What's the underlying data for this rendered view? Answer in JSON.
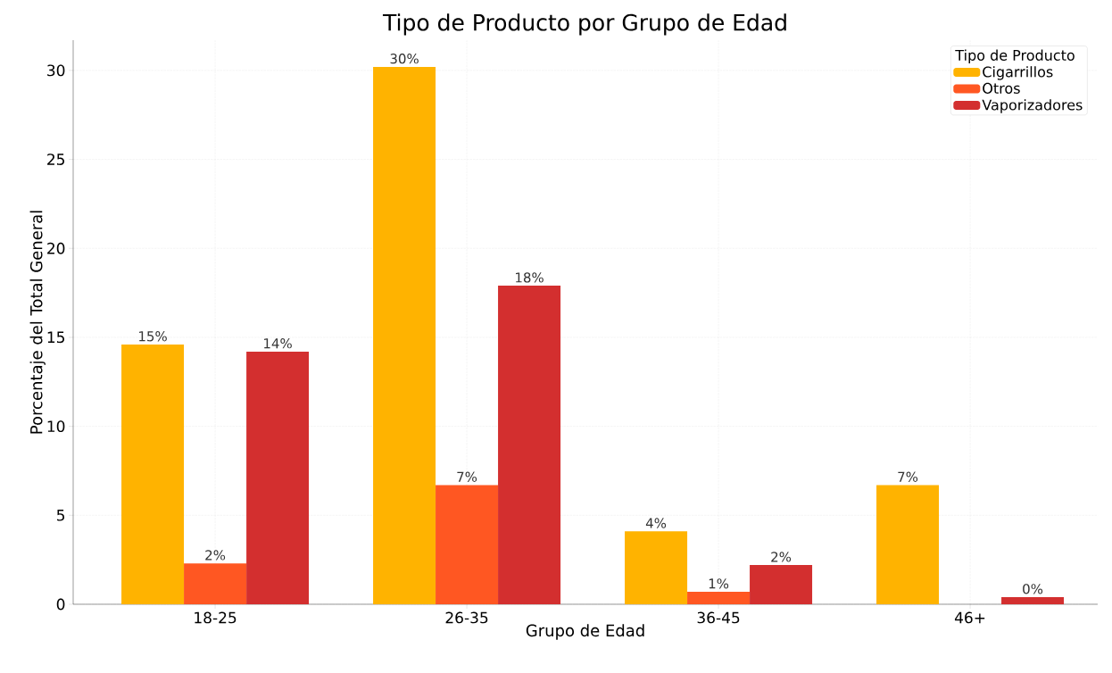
{
  "chart_data": {
    "type": "bar",
    "title": "Tipo de Producto por Grupo de Edad",
    "xlabel": "Grupo de Edad",
    "ylabel": "Porcentaje del Total General",
    "legend_title": "Tipo de Producto",
    "categories": [
      "18-25",
      "26-35",
      "36-45",
      "46+"
    ],
    "series": [
      {
        "name": "Cigarrillos",
        "color": "#ffb300",
        "values": [
          14.6,
          30.2,
          4.1,
          6.7
        ],
        "value_labels": [
          "15%",
          "30%",
          "4%",
          "7%"
        ]
      },
      {
        "name": "Otros",
        "color": "#ff5722",
        "values": [
          2.3,
          6.7,
          0.7,
          null
        ],
        "value_labels": [
          "2%",
          "7%",
          "1%",
          null
        ]
      },
      {
        "name": "Vaporizadores",
        "color": "#d32f2f",
        "values": [
          14.2,
          17.9,
          2.2,
          0.4
        ],
        "value_labels": [
          "14%",
          "18%",
          "2%",
          "0%"
        ]
      }
    ],
    "ylim": [
      0,
      31.7
    ],
    "yticks": [
      0,
      5,
      10,
      15,
      20,
      25,
      30
    ],
    "grid": true,
    "legend": "top right"
  }
}
